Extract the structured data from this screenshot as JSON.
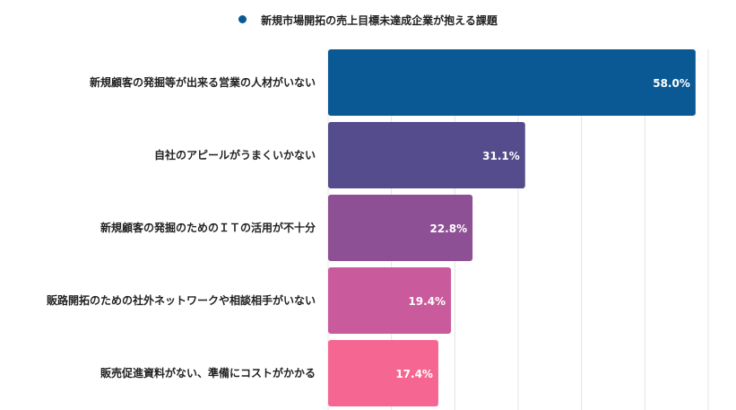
{
  "chart_data": {
    "type": "bar",
    "orientation": "horizontal",
    "legend": {
      "label": "新規市場開拓の売上目標未達成企業が抱える課題",
      "position": "top",
      "color": "#0a5894"
    },
    "categories": [
      "新規顧客の発掘等が出来る営業の人材がいない",
      "自社のアピールがうまくいかない",
      "新規顧客の発掘のためのＩＴの活用が不十分",
      "販路開拓のための社外ネットワークや相談相手がいない",
      "販売促進資料がない、準備にコストがかかる"
    ],
    "values": [
      58.0,
      31.1,
      22.8,
      19.4,
      17.4
    ],
    "value_labels": [
      "58.0%",
      "31.1%",
      "22.8%",
      "19.4%",
      "17.4%"
    ],
    "colors": [
      "#0a5894",
      "#544c8c",
      "#8d5095",
      "#c95a9b",
      "#f56792"
    ],
    "xlim": [
      0,
      60
    ],
    "grid": true
  }
}
